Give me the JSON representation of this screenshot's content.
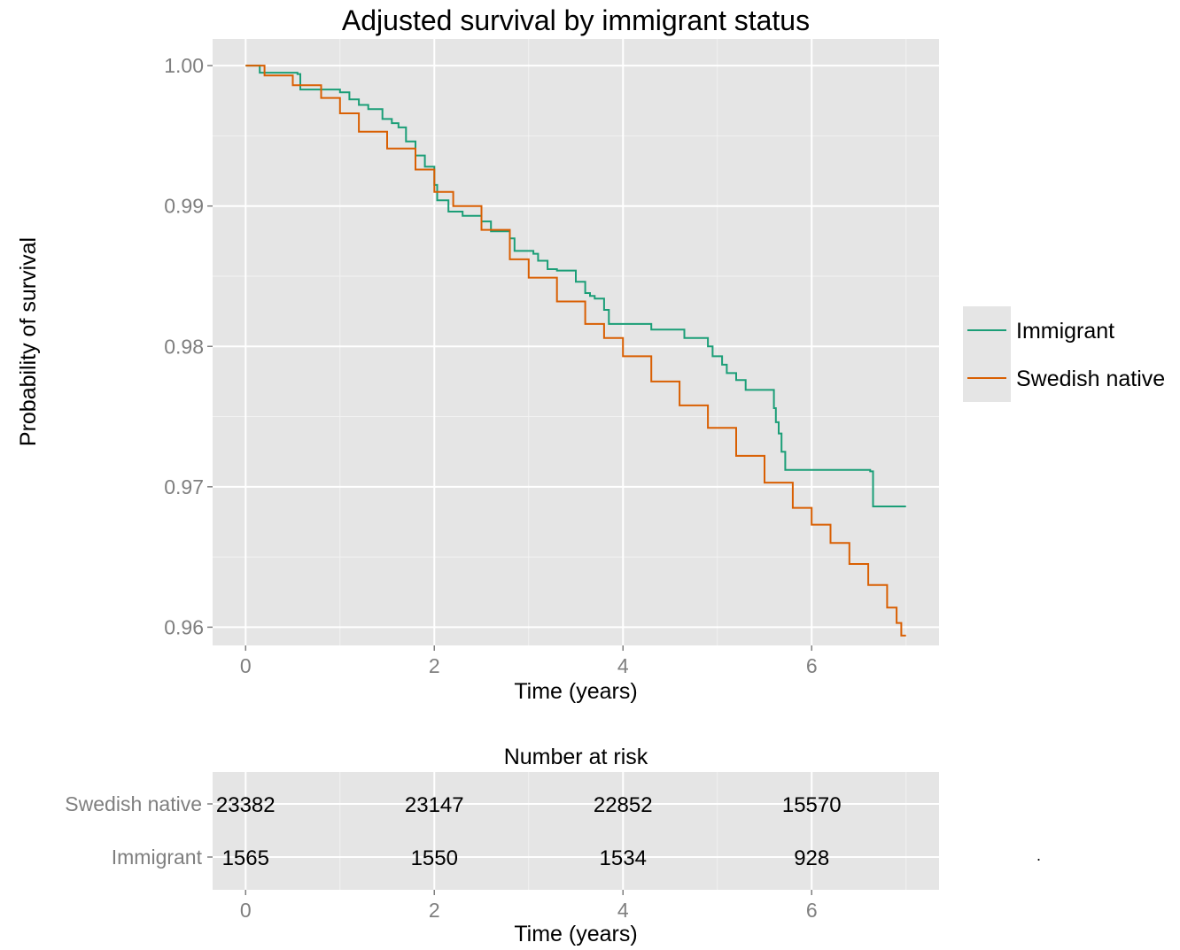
{
  "chart_data": [
    {
      "type": "line",
      "step": true,
      "title": "Adjusted survival by immigrant status",
      "xlabel": "Time (years)",
      "ylabel": "Probability of survival",
      "xlim": [
        -0.35,
        7.35
      ],
      "ylim": [
        0.9587,
        1.0019
      ],
      "x_ticks": [
        0,
        2,
        4,
        6
      ],
      "x_tick_labels": [
        "0",
        "2",
        "4",
        "6"
      ],
      "y_ticks": [
        0.96,
        0.97,
        0.98,
        0.99,
        1.0
      ],
      "y_tick_labels": [
        "0.96",
        "0.97",
        "0.98",
        "0.99",
        "1.00"
      ],
      "grid": true,
      "legend_position": "right",
      "series": [
        {
          "name": "Immigrant",
          "color": "#1b9e77",
          "x": [
            0,
            0.15,
            0.55,
            0.58,
            1.0,
            1.1,
            1.2,
            1.3,
            1.45,
            1.55,
            1.62,
            1.7,
            1.8,
            1.9,
            2.0,
            2.03,
            2.15,
            2.3,
            2.5,
            2.6,
            2.8,
            2.85,
            3.05,
            3.1,
            3.2,
            3.3,
            3.5,
            3.6,
            3.65,
            3.7,
            3.8,
            3.85,
            4.3,
            4.3,
            4.65,
            4.9,
            4.95,
            5.05,
            5.1,
            5.2,
            5.3,
            5.6,
            5.62,
            5.65,
            5.68,
            5.72,
            6.62,
            6.65,
            7.0
          ],
          "y": [
            1.0,
            0.9995,
            0.9994,
            0.9983,
            0.9981,
            0.9976,
            0.9972,
            0.9969,
            0.9962,
            0.9959,
            0.9956,
            0.9946,
            0.9936,
            0.9928,
            0.9915,
            0.9904,
            0.9896,
            0.9893,
            0.9889,
            0.9882,
            0.9877,
            0.9868,
            0.9866,
            0.9861,
            0.9855,
            0.9854,
            0.9846,
            0.9838,
            0.9836,
            0.9834,
            0.9826,
            0.9816,
            0.9814,
            0.9812,
            0.9806,
            0.98,
            0.9793,
            0.9787,
            0.9781,
            0.9776,
            0.9769,
            0.9756,
            0.9746,
            0.9738,
            0.9725,
            0.9712,
            0.9711,
            0.9686,
            0.9686
          ]
        },
        {
          "name": "Swedish native",
          "color": "#d95f02",
          "x": [
            0,
            0.2,
            0.5,
            0.8,
            1.0,
            1.2,
            1.5,
            1.8,
            2.0,
            2.2,
            2.5,
            2.8,
            3.0,
            3.3,
            3.6,
            3.8,
            4.0,
            4.3,
            4.6,
            4.9,
            5.2,
            5.5,
            5.8,
            6.0,
            6.2,
            6.4,
            6.6,
            6.8,
            6.9,
            6.95,
            7.0
          ],
          "y": [
            1.0,
            0.9993,
            0.9986,
            0.9977,
            0.9966,
            0.9953,
            0.9941,
            0.9926,
            0.991,
            0.99,
            0.9883,
            0.9862,
            0.9849,
            0.9832,
            0.9816,
            0.9806,
            0.9793,
            0.9775,
            0.9758,
            0.9742,
            0.9722,
            0.9703,
            0.9685,
            0.9673,
            0.966,
            0.9645,
            0.963,
            0.9614,
            0.9603,
            0.9594,
            0.9594
          ]
        }
      ]
    },
    {
      "type": "table",
      "title": "Number at risk",
      "xlabel": "Time (years)",
      "x_ticks": [
        0,
        2,
        4,
        6
      ],
      "x_tick_labels": [
        "0",
        "2",
        "4",
        "6"
      ],
      "rows": [
        {
          "label": "Swedish native",
          "values": [
            "23382",
            "23147",
            "22852",
            "15570"
          ]
        },
        {
          "label": "Immigrant",
          "values": [
            "1565",
            "1550",
            "1534",
            "928"
          ]
        }
      ]
    }
  ],
  "stray_mark": "."
}
